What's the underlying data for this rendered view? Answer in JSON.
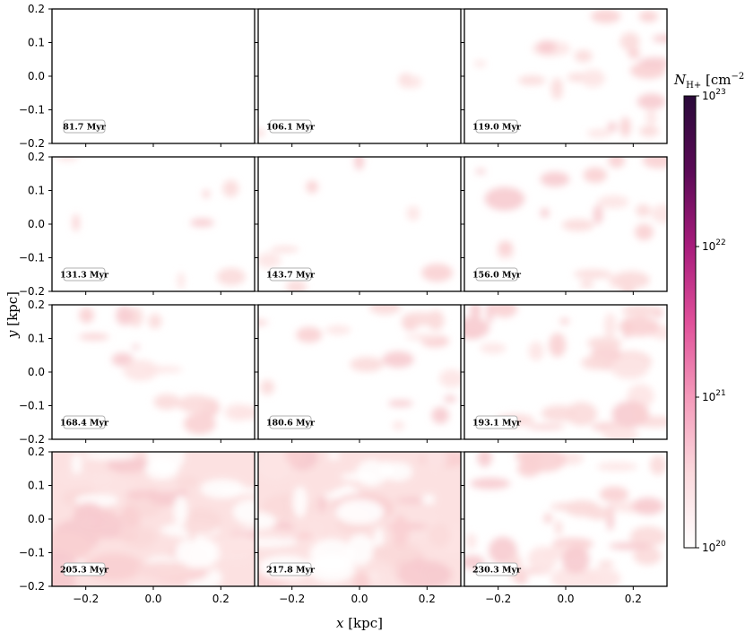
{
  "chart_data": {
    "type": "heatmap",
    "layout": "4x3 grid of column-density maps",
    "xlabel": "x [kpc]",
    "ylabel": "y [kpc]",
    "xlim": [
      -0.3,
      0.3
    ],
    "ylim": [
      -0.2,
      0.2
    ],
    "xticks": [
      -0.2,
      0.0,
      0.2
    ],
    "yticks": [
      -0.2,
      -0.1,
      0.0,
      0.1,
      0.2
    ],
    "x_tick_labels": [
      "−0.2",
      "0.0",
      "0.2"
    ],
    "y_tick_labels": [
      "−0.2",
      "−0.1",
      "0.0",
      "0.1",
      "0.2"
    ],
    "colorbar": {
      "label": "N_H+ [cm^-2]",
      "scale": "log",
      "range": [
        1e+20,
        1e+23
      ],
      "ticks": [
        20,
        21,
        22,
        23
      ],
      "tick_labels": [
        "10^20",
        "10^21",
        "10^22",
        "10^23"
      ],
      "colormap": [
        "#ffffff",
        "#fbd9dd",
        "#f49aba",
        "#e0509a",
        "#a81c7c",
        "#5a0a56",
        "#2a0a3a"
      ]
    },
    "panels": [
      {
        "label": "81.7 Myr",
        "time_myr": 81.7,
        "coverage": 0.0
      },
      {
        "label": "106.1 Myr",
        "time_myr": 106.1,
        "coverage": 0.05
      },
      {
        "label": "119.0 Myr",
        "time_myr": 119.0,
        "coverage": 0.35
      },
      {
        "label": "131.3 Myr",
        "time_myr": 131.3,
        "coverage": 0.12
      },
      {
        "label": "143.7 Myr",
        "time_myr": 143.7,
        "coverage": 0.12
      },
      {
        "label": "156.0 Myr",
        "time_myr": 156.0,
        "coverage": 0.35
      },
      {
        "label": "168.4 Myr",
        "time_myr": 168.4,
        "coverage": 0.25
      },
      {
        "label": "180.6 Myr",
        "time_myr": 180.6,
        "coverage": 0.28
      },
      {
        "label": "193.1 Myr",
        "time_myr": 193.1,
        "coverage": 0.5
      },
      {
        "label": "205.3 Myr",
        "time_myr": 205.3,
        "coverage": 0.9
      },
      {
        "label": "217.8 Myr",
        "time_myr": 217.8,
        "coverage": 0.92
      },
      {
        "label": "230.3 Myr",
        "time_myr": 230.3,
        "coverage": 0.55
      }
    ]
  }
}
